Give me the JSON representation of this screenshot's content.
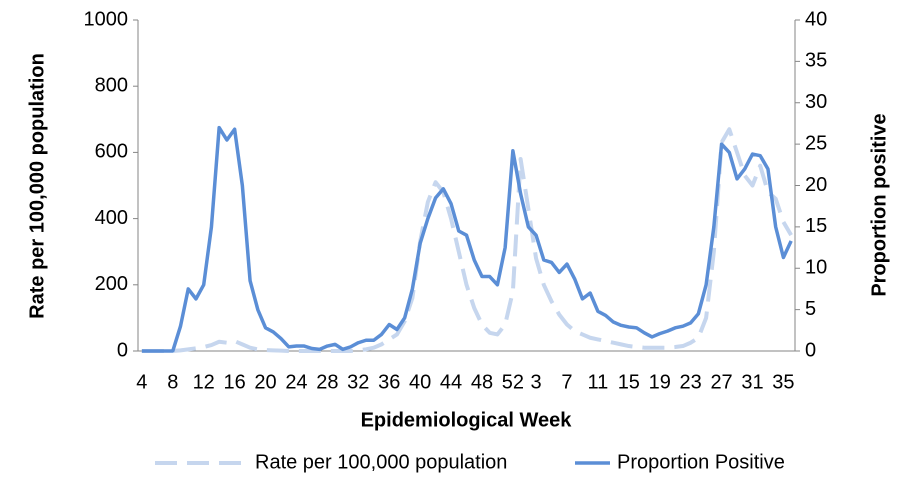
{
  "chart_data": {
    "type": "line",
    "xlabel": "Epidemiological Week",
    "ylabel": "Rate per 100,000 population",
    "y2label": "Proportion positive",
    "categories": [
      4,
      null,
      null,
      null,
      8,
      null,
      null,
      null,
      12,
      null,
      null,
      null,
      16,
      null,
      null,
      null,
      20,
      null,
      null,
      null,
      24,
      null,
      null,
      null,
      28,
      null,
      null,
      null,
      32,
      null,
      null,
      null,
      36,
      null,
      null,
      null,
      40,
      null,
      null,
      null,
      44,
      null,
      null,
      null,
      48,
      null,
      null,
      null,
      52,
      null,
      null,
      3,
      null,
      null,
      null,
      7,
      null,
      null,
      null,
      11,
      null,
      null,
      null,
      15,
      null,
      null,
      null,
      19,
      null,
      null,
      null,
      23,
      null,
      null,
      null,
      27,
      null,
      null,
      null,
      31,
      null,
      null,
      null,
      35,
      null
    ],
    "ylim": [
      0,
      1000
    ],
    "yticks": [
      0,
      200,
      400,
      600,
      800,
      1000
    ],
    "y2lim": [
      0,
      40
    ],
    "y2ticks": [
      0,
      5,
      10,
      15,
      20,
      25,
      30,
      35,
      40
    ],
    "grid": false,
    "legend": "bottom",
    "series": [
      {
        "name": "Rate per 100,000 population",
        "color": "#c6d6ee",
        "dash": true,
        "values": [
          0,
          0,
          0,
          0,
          0,
          2,
          5,
          8,
          12,
          18,
          28,
          25,
          30,
          20,
          10,
          5,
          3,
          2,
          1,
          0,
          0,
          0,
          0,
          0,
          0,
          0,
          0,
          0,
          2,
          5,
          10,
          20,
          35,
          50,
          90,
          160,
          330,
          450,
          510,
          480,
          400,
          300,
          200,
          130,
          80,
          55,
          50,
          80,
          180,
          580,
          430,
          280,
          200,
          150,
          110,
          80,
          60,
          50,
          40,
          35,
          30,
          25,
          20,
          15,
          12,
          10,
          10,
          10,
          10,
          12,
          15,
          25,
          40,
          100,
          300,
          630,
          670,
          600,
          530,
          500,
          560,
          480,
          460,
          390,
          350
        ]
      },
      {
        "name": "Proportion Positive",
        "color": "#5b8ed6",
        "dash": false,
        "axis": "y2",
        "values": [
          0,
          0,
          0,
          0,
          0,
          3,
          7.5,
          6.3,
          8,
          15,
          27,
          25.5,
          26.8,
          20,
          8.5,
          5,
          2.8,
          2.3,
          1.5,
          0.5,
          0.6,
          0.6,
          0.3,
          0.2,
          0.6,
          0.8,
          0.2,
          0.5,
          1,
          1.3,
          1.3,
          2,
          3.2,
          2.6,
          4,
          7.5,
          13,
          16,
          18.5,
          19.6,
          17.8,
          14.5,
          14,
          11,
          9,
          9,
          8,
          12.5,
          24.2,
          19,
          15,
          14,
          11,
          10.7,
          9.5,
          10.5,
          8.7,
          6.3,
          7,
          4.8,
          4.3,
          3.5,
          3.1,
          2.9,
          2.8,
          2.2,
          1.7,
          2.1,
          2.4,
          2.8,
          3,
          3.4,
          4.5,
          8,
          15,
          25,
          24,
          20.8,
          22,
          23.8,
          23.6,
          22,
          15,
          11.3,
          13.3
        ]
      }
    ]
  }
}
